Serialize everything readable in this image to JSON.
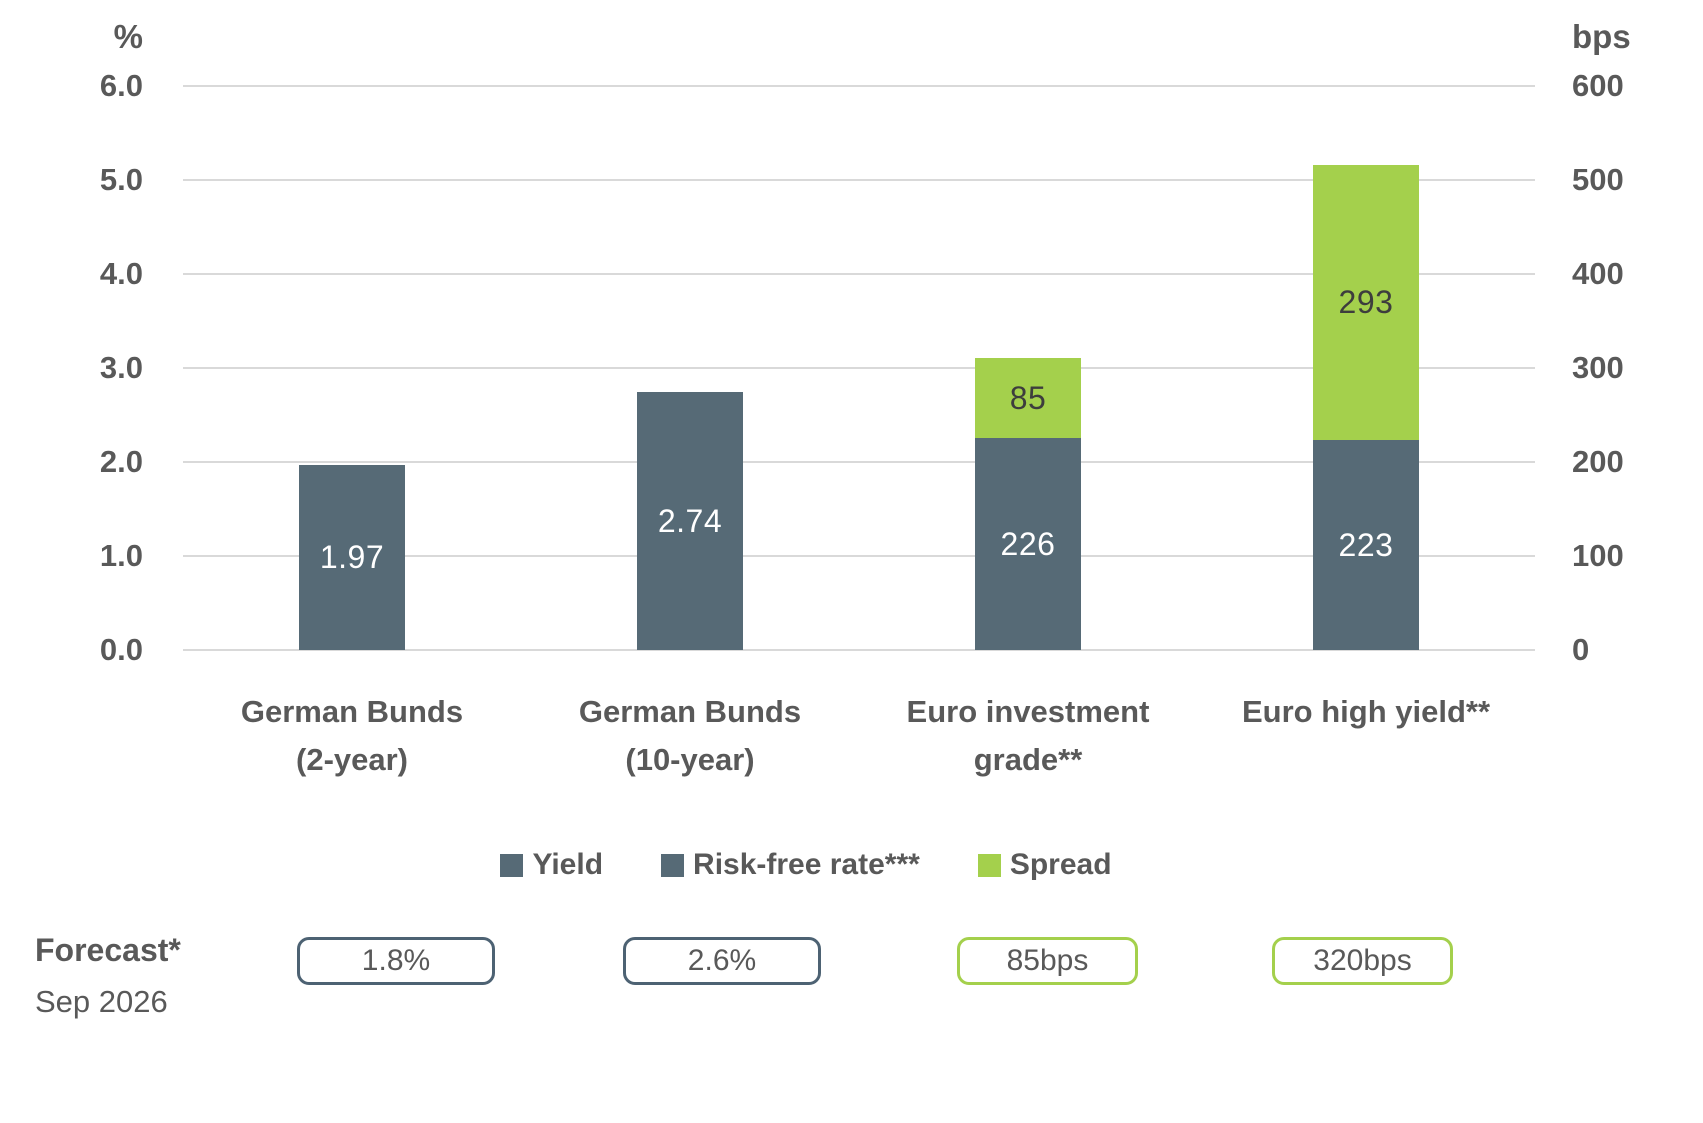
{
  "colors": {
    "dark": "#566a76",
    "green": "#a4d04c",
    "axis_text": "#595959",
    "grid": "#d9d9d9",
    "label_on_dark": "#ffffff",
    "label_on_green": "#3d3d3d",
    "box_border_dark": "#4d6273"
  },
  "chart_data": {
    "type": "bar",
    "stacked": true,
    "dual_axis": true,
    "grid": true,
    "legend_position": "bottom",
    "left_axis": {
      "label": "%",
      "range": [
        0.0,
        6.0
      ],
      "tick_step": 1.0,
      "tick_labels": [
        "0.0",
        "1.0",
        "2.0",
        "3.0",
        "4.0",
        "5.0",
        "6.0"
      ]
    },
    "right_axis": {
      "label": "bps",
      "range": [
        0,
        600
      ],
      "tick_step": 100,
      "tick_labels": [
        "0",
        "100",
        "200",
        "300",
        "400",
        "500",
        "600"
      ]
    },
    "categories": [
      "German Bunds (2-year)",
      "German Bunds (10-year)",
      "Euro investment grade**",
      "Euro high yield**"
    ],
    "series": [
      {
        "name": "Yield",
        "unit": "%",
        "axis": "left",
        "values": [
          1.97,
          2.74,
          null,
          null
        ]
      },
      {
        "name": "Risk-free rate***",
        "unit": "bps",
        "axis": "right",
        "values": [
          null,
          null,
          226,
          223
        ]
      },
      {
        "name": "Spread",
        "unit": "bps",
        "axis": "right",
        "values": [
          null,
          null,
          85,
          293
        ]
      }
    ],
    "bars": [
      {
        "category_lines": [
          "German Bunds",
          "(2-year)"
        ],
        "segments": [
          {
            "series": "Yield",
            "series_key": "yield",
            "value_pct": 1.97,
            "label": "1.97",
            "color": "dark"
          }
        ]
      },
      {
        "category_lines": [
          "German Bunds",
          "(10-year)"
        ],
        "segments": [
          {
            "series": "Yield",
            "series_key": "yield",
            "value_pct": 2.74,
            "label": "2.74",
            "color": "dark"
          }
        ]
      },
      {
        "category_lines": [
          "Euro investment",
          "grade**"
        ],
        "segments": [
          {
            "series": "Risk-free rate***",
            "series_key": "risk-free-rate",
            "value_pct": 2.26,
            "label": "226",
            "color": "dark"
          },
          {
            "series": "Spread",
            "series_key": "spread",
            "value_pct": 0.85,
            "label": "85",
            "color": "green"
          }
        ]
      },
      {
        "category_lines": [
          "Euro high yield**"
        ],
        "segments": [
          {
            "series": "Risk-free rate***",
            "series_key": "risk-free-rate",
            "value_pct": 2.23,
            "label": "223",
            "color": "dark"
          },
          {
            "series": "Spread",
            "series_key": "spread",
            "value_pct": 2.93,
            "label": "293",
            "color": "green"
          }
        ]
      }
    ]
  },
  "legend": {
    "items": [
      {
        "label": "Yield",
        "color": "dark"
      },
      {
        "label": "Risk-free rate***",
        "color": "dark"
      },
      {
        "label": "Spread",
        "color": "green"
      }
    ]
  },
  "forecast": {
    "title": "Forecast*",
    "subtitle": "Sep 2026",
    "boxes": [
      {
        "value": "1.8%",
        "style": "dark"
      },
      {
        "value": "2.6%",
        "style": "dark"
      },
      {
        "value": "85bps",
        "style": "green"
      },
      {
        "value": "320bps",
        "style": "green"
      }
    ]
  }
}
